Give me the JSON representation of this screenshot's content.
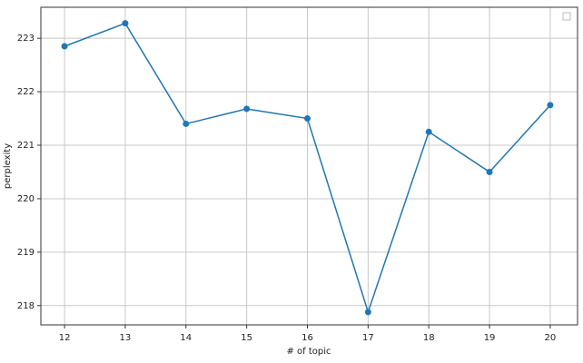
{
  "chart_data": {
    "type": "line",
    "x_label": "# of topic",
    "y_label": "perplexity",
    "x": [
      12,
      13,
      14,
      15,
      16,
      17,
      18,
      19,
      20
    ],
    "series": [
      {
        "color": "#1f77b4",
        "values": [
          222.85,
          223.28,
          221.4,
          221.68,
          221.5,
          217.88,
          221.25,
          220.5,
          221.75
        ]
      }
    ],
    "xlim": [
      11.61,
      20.45
    ],
    "ylim": [
      217.64,
      223.58
    ],
    "xticks": [
      12,
      13,
      14,
      15,
      16,
      17,
      18,
      19,
      20
    ],
    "yticks": [
      218,
      219,
      220,
      221,
      222,
      223
    ],
    "grid": true
  }
}
